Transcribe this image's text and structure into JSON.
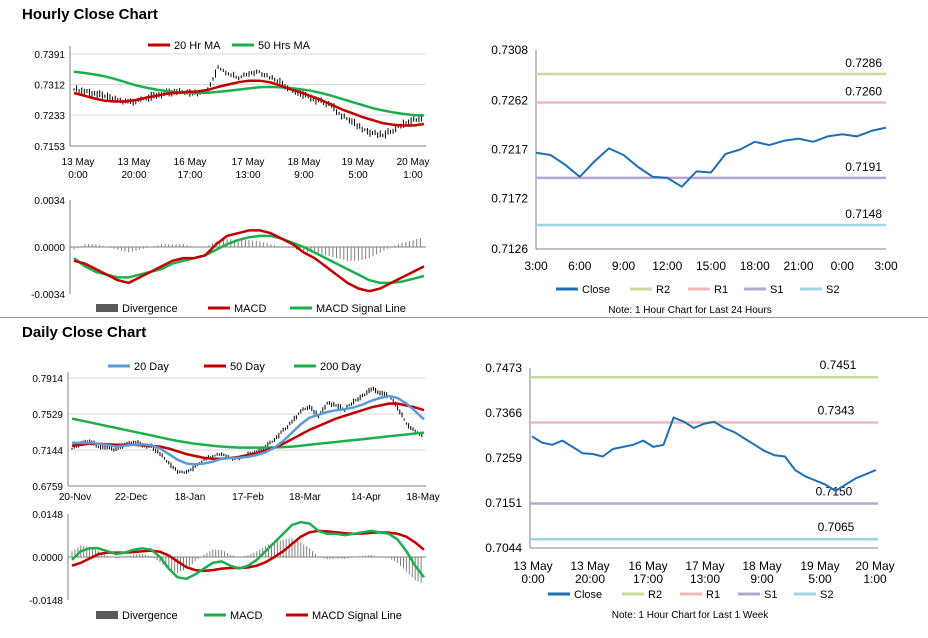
{
  "sections": {
    "hourly_title": "Hourly Close Chart",
    "daily_title": "Daily Close Chart"
  },
  "colors": {
    "blue": "#1f6fb5",
    "red": "#c00000",
    "green": "#1fae4f",
    "light_blue": "#5b9bd5",
    "r2": "#c5dc9b",
    "r1": "#f2b8b8",
    "s1": "#b4a7cf",
    "s2": "#9fd4e3",
    "price": "#000000",
    "divergence": "#7f7f7f"
  },
  "chart_data": [
    {
      "id": "hourly_price",
      "type": "line",
      "legend": [
        "20 Hr MA",
        "50 Hrs MA"
      ],
      "yticks": [
        "0.7391",
        "0.7312",
        "0.7233",
        "0.7153"
      ],
      "ylim": [
        0.7153,
        0.7391
      ],
      "xticks": [
        [
          "13 May",
          "0:00"
        ],
        [
          "13 May",
          "20:00"
        ],
        [
          "16 May",
          "17:00"
        ],
        [
          "17 May",
          "13:00"
        ],
        [
          "18 May",
          "9:00"
        ],
        [
          "19 May",
          "5:00"
        ],
        [
          "20 May",
          "1:00"
        ]
      ],
      "series": [
        {
          "name": "Price",
          "values": [
            0.73,
            0.7295,
            0.729,
            0.7282,
            0.7272,
            0.7266,
            0.727,
            0.7278,
            0.7285,
            0.729,
            0.7292,
            0.729,
            0.7292,
            0.7295,
            0.7355,
            0.734,
            0.733,
            0.734,
            0.7345,
            0.733,
            0.732,
            0.73,
            0.729,
            0.7275,
            0.7268,
            0.726,
            0.723,
            0.7215,
            0.72,
            0.7185,
            0.718,
            0.7195,
            0.721,
            0.722,
            0.7228
          ]
        },
        {
          "name": "20 Hr MA",
          "values": [
            0.729,
            0.7283,
            0.7276,
            0.727,
            0.7268,
            0.7268,
            0.7272,
            0.7278,
            0.7283,
            0.7288,
            0.7291,
            0.7293,
            0.7294,
            0.7298,
            0.7306,
            0.7312,
            0.7318,
            0.7322,
            0.7322,
            0.7318,
            0.731,
            0.73,
            0.7292,
            0.7282,
            0.7272,
            0.726,
            0.7248,
            0.7238,
            0.7228,
            0.722,
            0.7212,
            0.7208,
            0.7206,
            0.7206,
            0.721
          ]
        },
        {
          "name": "50 Hrs MA",
          "values": [
            0.7345,
            0.7342,
            0.7338,
            0.7333,
            0.7326,
            0.7318,
            0.731,
            0.7304,
            0.7299,
            0.7295,
            0.7292,
            0.729,
            0.729,
            0.7291,
            0.7293,
            0.7296,
            0.7299,
            0.7302,
            0.7305,
            0.7306,
            0.7305,
            0.7303,
            0.73,
            0.7296,
            0.729,
            0.7283,
            0.7275,
            0.7267,
            0.7259,
            0.7251,
            0.7245,
            0.724,
            0.7236,
            0.7233,
            0.7232
          ]
        }
      ]
    },
    {
      "id": "hourly_macd",
      "type": "line",
      "legend": [
        "Divergence",
        "MACD",
        "MACD Signal Line"
      ],
      "yticks": [
        "0.0034",
        "0.0000",
        "-0.0034"
      ],
      "ylim": [
        -0.0034,
        0.0034
      ],
      "series": [
        {
          "name": "MACD",
          "values": [
            -0.001,
            -0.0012,
            -0.0016,
            -0.002,
            -0.0024,
            -0.0026,
            -0.0022,
            -0.0018,
            -0.0014,
            -0.001,
            -0.0008,
            -0.0008,
            -0.0006,
            0.0002,
            0.0008,
            0.001,
            0.0012,
            0.0012,
            0.001,
            0.0006,
            0.0002,
            -0.0004,
            -0.0008,
            -0.0014,
            -0.002,
            -0.0026,
            -0.003,
            -0.0032,
            -0.003,
            -0.0026,
            -0.0022,
            -0.0018,
            -0.0014
          ]
        },
        {
          "name": "MACD Signal Line",
          "values": [
            -0.0008,
            -0.0014,
            -0.0018,
            -0.002,
            -0.0022,
            -0.0022,
            -0.002,
            -0.0018,
            -0.0016,
            -0.0012,
            -0.001,
            -0.0008,
            -0.0006,
            -0.0002,
            0.0002,
            0.0005,
            0.0007,
            0.0008,
            0.0008,
            0.0006,
            0.0003,
            0.0,
            -0.0004,
            -0.0008,
            -0.0012,
            -0.0016,
            -0.002,
            -0.0024,
            -0.0026,
            -0.0026,
            -0.0025,
            -0.0023,
            -0.0021
          ]
        },
        {
          "name": "Divergence",
          "values": [
            -0.0002,
            0.0002,
            0.0002,
            0.0,
            -0.0002,
            -0.0004,
            -0.0002,
            0.0,
            0.0002,
            0.0002,
            0.0002,
            0.0,
            0.0,
            0.0004,
            0.0006,
            0.0005,
            0.0005,
            0.0004,
            0.0002,
            0.0,
            -0.0001,
            -0.0004,
            -0.0004,
            -0.0006,
            -0.0008,
            -0.001,
            -0.001,
            -0.0008,
            -0.0004,
            0.0,
            0.0003,
            0.0005,
            0.0007
          ]
        }
      ]
    },
    {
      "id": "hourly_levels",
      "type": "line",
      "yticks": [
        "0.7308",
        "0.7262",
        "0.7217",
        "0.7172",
        "0.7126"
      ],
      "ylim": [
        0.7126,
        0.7308
      ],
      "xticks": [
        "3:00",
        "6:00",
        "9:00",
        "12:00",
        "15:00",
        "18:00",
        "21:00",
        "0:00",
        "3:00"
      ],
      "levels": [
        {
          "name": "R2",
          "value": 0.7286,
          "label": "0.7286"
        },
        {
          "name": "R1",
          "value": 0.726,
          "label": "0.7260"
        },
        {
          "name": "S1",
          "value": 0.7191,
          "label": "0.7191"
        },
        {
          "name": "S2",
          "value": 0.7148,
          "label": "0.7148"
        }
      ],
      "series": [
        {
          "name": "Close",
          "x": [
            3,
            4,
            5,
            6,
            7,
            8,
            9,
            10,
            11,
            12,
            13,
            14,
            15,
            16,
            17,
            18,
            19,
            20,
            21,
            22,
            23,
            24,
            25,
            26,
            27
          ],
          "values": [
            0.7214,
            0.7212,
            0.7203,
            0.7192,
            0.7206,
            0.7218,
            0.7212,
            0.7201,
            0.7192,
            0.7191,
            0.7183,
            0.7197,
            0.7196,
            0.7213,
            0.7217,
            0.7224,
            0.7221,
            0.7225,
            0.7227,
            0.7224,
            0.7229,
            0.7231,
            0.7229,
            0.7234,
            0.7237
          ]
        }
      ],
      "legend": [
        "Close",
        "R2",
        "R1",
        "S1",
        "S2"
      ],
      "note": "Note: 1 Hour Chart for Last 24 Hours"
    },
    {
      "id": "daily_price",
      "type": "line",
      "legend": [
        "20 Day",
        "50 Day",
        "200 Day"
      ],
      "yticks": [
        "0.7914",
        "0.7529",
        "0.7144",
        "0.6759"
      ],
      "ylim": [
        0.6759,
        0.7914
      ],
      "xticks": [
        "20-Nov",
        "22-Dec",
        "18-Jan",
        "17-Feb",
        "18-Mar",
        "14-Apr",
        "18-May"
      ],
      "series": [
        {
          "name": "Price",
          "values": [
            0.716,
            0.722,
            0.724,
            0.718,
            0.717,
            0.714,
            0.721,
            0.723,
            0.72,
            0.718,
            0.71,
            0.7,
            0.692,
            0.69,
            0.696,
            0.704,
            0.708,
            0.71,
            0.706,
            0.705,
            0.71,
            0.713,
            0.718,
            0.725,
            0.735,
            0.745,
            0.756,
            0.76,
            0.752,
            0.764,
            0.762,
            0.758,
            0.766,
            0.772,
            0.78,
            0.776,
            0.772,
            0.76,
            0.743,
            0.733,
            0.73
          ]
        },
        {
          "name": "20 Day",
          "values": [
            0.722,
            0.722,
            0.722,
            0.721,
            0.72,
            0.718,
            0.719,
            0.72,
            0.7205,
            0.7195,
            0.716,
            0.71,
            0.704,
            0.7,
            0.699,
            0.7,
            0.702,
            0.705,
            0.706,
            0.706,
            0.707,
            0.709,
            0.712,
            0.717,
            0.724,
            0.733,
            0.742,
            0.749,
            0.752,
            0.755,
            0.757,
            0.758,
            0.76,
            0.763,
            0.767,
            0.77,
            0.772,
            0.77,
            0.764,
            0.756,
            0.747
          ]
        },
        {
          "name": "50 Day",
          "values": [
            0.719,
            0.72,
            0.721,
            0.721,
            0.7205,
            0.72,
            0.72,
            0.72,
            0.7195,
            0.719,
            0.718,
            0.716,
            0.713,
            0.71,
            0.708,
            0.706,
            0.705,
            0.705,
            0.706,
            0.707,
            0.709,
            0.711,
            0.714,
            0.717,
            0.721,
            0.726,
            0.731,
            0.736,
            0.74,
            0.744,
            0.748,
            0.751,
            0.754,
            0.757,
            0.76,
            0.762,
            0.764,
            0.764,
            0.762,
            0.76,
            0.757
          ]
        },
        {
          "name": "200 Day",
          "values": [
            0.748,
            0.746,
            0.744,
            0.742,
            0.74,
            0.738,
            0.736,
            0.734,
            0.732,
            0.73,
            0.728,
            0.726,
            0.724,
            0.7225,
            0.721,
            0.72,
            0.719,
            0.718,
            0.7175,
            0.717,
            0.717,
            0.717,
            0.717,
            0.7172,
            0.7175,
            0.718,
            0.719,
            0.72,
            0.721,
            0.722,
            0.723,
            0.724,
            0.725,
            0.726,
            0.727,
            0.728,
            0.729,
            0.73,
            0.731,
            0.732,
            0.733
          ]
        }
      ]
    },
    {
      "id": "daily_macd",
      "type": "line",
      "legend": [
        "Divergence",
        "MACD",
        "MACD Signal Line"
      ],
      "yticks": [
        "0.0148",
        "0.0000",
        "-0.0148"
      ],
      "ylim": [
        -0.0148,
        0.0148
      ],
      "series": [
        {
          "name": "MACD",
          "values": [
            -0.001,
            0.002,
            0.003,
            0.003,
            0.002,
            0.001,
            0.0015,
            0.0025,
            0.003,
            0.0025,
            0.0,
            -0.004,
            -0.007,
            -0.0075,
            -0.006,
            -0.004,
            -0.002,
            -0.0015,
            -0.003,
            -0.004,
            -0.003,
            -0.001,
            0.002,
            0.005,
            0.008,
            0.011,
            0.012,
            0.0115,
            0.009,
            0.008,
            0.008,
            0.0075,
            0.008,
            0.0085,
            0.009,
            0.0085,
            0.008,
            0.006,
            0.002,
            -0.003,
            -0.007
          ]
        },
        {
          "name": "MACD Signal Line",
          "values": [
            -0.003,
            -0.002,
            -0.0005,
            0.001,
            0.0015,
            0.0015,
            0.0015,
            0.0017,
            0.002,
            0.0022,
            0.0018,
            0.0005,
            -0.0015,
            -0.0035,
            -0.0045,
            -0.0048,
            -0.0045,
            -0.004,
            -0.0038,
            -0.0038,
            -0.0036,
            -0.003,
            -0.0018,
            0.0,
            0.002,
            0.0045,
            0.007,
            0.0085,
            0.009,
            0.0088,
            0.0085,
            0.0082,
            0.008,
            0.0081,
            0.0083,
            0.0085,
            0.0084,
            0.008,
            0.007,
            0.005,
            0.0025
          ]
        },
        {
          "name": "Divergence",
          "values": [
            0.002,
            0.004,
            0.0035,
            0.002,
            0.0005,
            -0.0005,
            0.0,
            0.0008,
            0.001,
            0.0003,
            -0.0018,
            -0.0045,
            -0.0055,
            -0.004,
            -0.0015,
            0.0008,
            0.0025,
            0.0025,
            0.0008,
            -0.0002,
            0.0006,
            0.002,
            0.0038,
            0.005,
            0.006,
            0.0065,
            0.005,
            0.003,
            0.0,
            -0.0008,
            -0.0005,
            -0.0007,
            0.0,
            0.0004,
            0.0007,
            0.0,
            -0.0004,
            -0.002,
            -0.005,
            -0.008,
            -0.0095
          ]
        }
      ]
    },
    {
      "id": "daily_levels",
      "type": "line",
      "yticks": [
        "0.7473",
        "0.7366",
        "0.7259",
        "0.7151",
        "0.7044"
      ],
      "ylim": [
        0.7044,
        0.7473
      ],
      "xticks": [
        [
          "13 May",
          "0:00"
        ],
        [
          "13 May",
          "20:00"
        ],
        [
          "16 May",
          "17:00"
        ],
        [
          "17 May",
          "13:00"
        ],
        [
          "18 May",
          "9:00"
        ],
        [
          "19 May",
          "5:00"
        ],
        [
          "20 May",
          "1:00"
        ]
      ],
      "levels": [
        {
          "name": "R2",
          "value": 0.7451,
          "label": "0.7451"
        },
        {
          "name": "R1",
          "value": 0.7343,
          "label": "0.7343"
        },
        {
          "name": "S1",
          "value": 0.715,
          "label": "0.7150"
        },
        {
          "name": "S2",
          "value": 0.7065,
          "label": "0.7065"
        }
      ],
      "series": [
        {
          "name": "Close",
          "values": [
            0.731,
            0.7295,
            0.729,
            0.73,
            0.7285,
            0.727,
            0.7268,
            0.7262,
            0.728,
            0.7285,
            0.729,
            0.73,
            0.7285,
            0.729,
            0.7355,
            0.7345,
            0.733,
            0.734,
            0.7345,
            0.733,
            0.732,
            0.7305,
            0.729,
            0.7275,
            0.7265,
            0.7262,
            0.723,
            0.7215,
            0.7205,
            0.7195,
            0.718,
            0.7195,
            0.721,
            0.722,
            0.723
          ]
        }
      ],
      "legend": [
        "Close",
        "R2",
        "R1",
        "S1",
        "S2"
      ],
      "note": "Note: 1 Hour Chart for Last 1 Week"
    }
  ]
}
